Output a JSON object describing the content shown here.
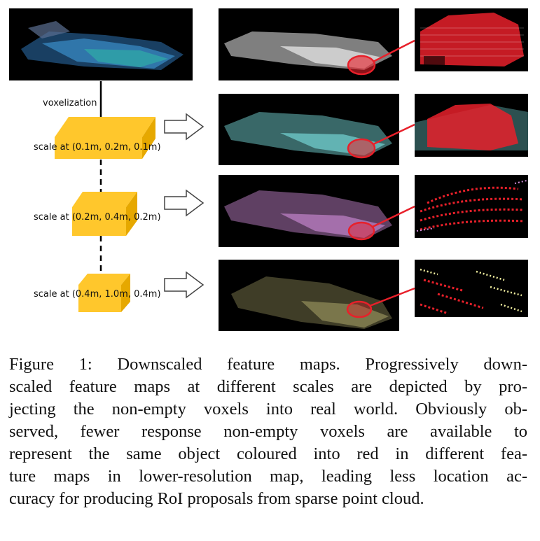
{
  "figure": {
    "voxelization_label": "voxelization",
    "scale_labels": [
      "scale at (0.1m, 0.2m, 0.1m)",
      "scale at (0.2m, 0.4m, 0.2m)",
      "scale at (0.4m, 1.0m, 0.4m)"
    ],
    "colors": {
      "box": "#FFC72C",
      "box_side": "#E6A800",
      "highlight": "#E8202A",
      "map_white": "#e8e8e8",
      "map_cyan": "#7fe6e6",
      "map_purple": "#d28fdc",
      "map_olive": "#b5b070",
      "input_blue": "#3a8fc9"
    }
  },
  "caption": {
    "lines": [
      "Figure 1: Downscaled feature maps. Progressively down-",
      "scaled feature maps at different scales are depicted by pro-",
      "jecting the non-empty voxels into real world. Obviously ob-",
      "served, fewer response non-empty voxels are available to",
      "represent the same object coloured into red in different fea-",
      "ture maps in lower-resolution map, leading less location ac-",
      "curacy for producing RoI proposals from sparse point cloud."
    ]
  }
}
